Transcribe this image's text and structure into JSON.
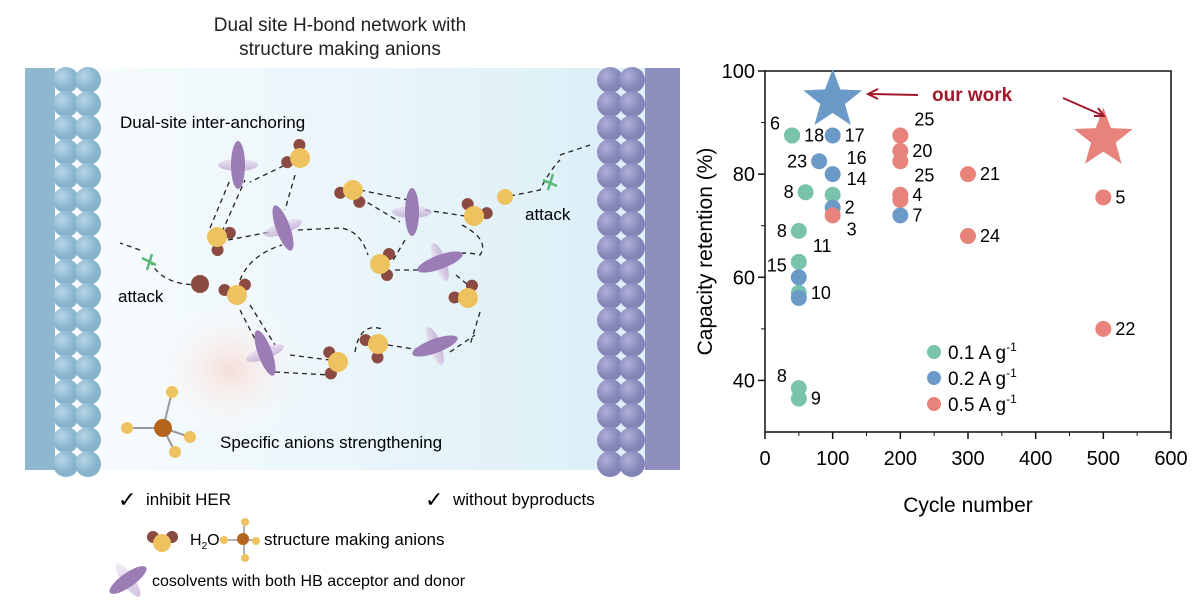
{
  "diagram": {
    "title_line1": "Dual site H-bond network with",
    "title_line2": "structure making anions",
    "label_anchoring": "Dual-site inter-anchoring",
    "label_attack_left": "attack",
    "label_attack_right": "attack",
    "label_anions": "Specific anions strengthening",
    "check_1": "inhibit HER",
    "check_2": "without byproducts",
    "legend_water": "H",
    "legend_water_sub": "2",
    "legend_water_end": "O",
    "legend_anion": "structure making anions",
    "legend_cosolvent": "cosolvents with both HB acceptor and donor",
    "colors": {
      "left_electrode": "#8fb8d0",
      "right_electrode": "#8f8fbd",
      "water_o": "#eec35f",
      "water_h": "#8b4a42",
      "cosolvent": "#8a6aa5",
      "attack_x": "#5cb87a"
    }
  },
  "chart_data": {
    "type": "scatter",
    "xlabel": "Cycle number",
    "ylabel": "Capacity retention (%)",
    "xlim": [
      0,
      600
    ],
    "ylim": [
      30,
      100
    ],
    "xticks": [
      0,
      100,
      200,
      300,
      400,
      500,
      600
    ],
    "yticks": [
      40,
      60,
      80,
      100
    ],
    "grid": false,
    "legend_placement": "bottom-center",
    "annotation": "our work",
    "annotation_color": "#a0182a",
    "series": [
      {
        "name": "0.1 A g",
        "sup": "-1",
        "color": "#79c3ad",
        "points": [
          {
            "x": 40,
            "y": 87.5,
            "label": "6",
            "side": "upleft"
          },
          {
            "x": 40,
            "y": 87.5,
            "label": "18",
            "side": "right"
          },
          {
            "x": 60,
            "y": 76.5,
            "label": "8",
            "side": "left"
          },
          {
            "x": 100,
            "y": 76,
            "label": "14",
            "side": "upright"
          },
          {
            "x": 50,
            "y": 69,
            "label": "8",
            "side": "left"
          },
          {
            "x": 50,
            "y": 63,
            "label": "11",
            "side": "upright"
          },
          {
            "x": 50,
            "y": 57,
            "label": "10",
            "side": "right"
          },
          {
            "x": 50,
            "y": 38.5,
            "label": "8",
            "side": "upleft"
          },
          {
            "x": 50,
            "y": 36.5,
            "label": "9",
            "side": "right"
          }
        ]
      },
      {
        "name": "0.2 A g",
        "sup": "-1",
        "color": "#6c9ac8",
        "points": [
          {
            "x": 100,
            "y": 87.5,
            "label": "17",
            "side": "right"
          },
          {
            "x": 80,
            "y": 82.5,
            "label": "23",
            "side": "left"
          },
          {
            "x": 100,
            "y": 80,
            "label": "16",
            "side": "upright"
          },
          {
            "x": 100,
            "y": 73.5,
            "label": "2",
            "side": "right"
          },
          {
            "x": 50,
            "y": 60,
            "label": "15",
            "side": "upleft"
          },
          {
            "x": 50,
            "y": 56,
            "label": "",
            "side": "right"
          },
          {
            "x": 200,
            "y": 72,
            "label": "7",
            "side": "right"
          }
        ],
        "star": {
          "x": 100,
          "y": 94
        }
      },
      {
        "name": "0.5 A g",
        "sup": "-1",
        "color": "#e8837c",
        "points": [
          {
            "x": 100,
            "y": 72,
            "label": "3",
            "side": "downright"
          },
          {
            "x": 200,
            "y": 87.5,
            "label": "25",
            "side": "upright"
          },
          {
            "x": 200,
            "y": 84.5,
            "label": "20",
            "side": "right"
          },
          {
            "x": 200,
            "y": 82.5,
            "label": "25",
            "side": "downright"
          },
          {
            "x": 200,
            "y": 76,
            "label": "4",
            "side": "right"
          },
          {
            "x": 200,
            "y": 75,
            "label": "",
            "side": "right"
          },
          {
            "x": 300,
            "y": 80,
            "label": "21",
            "side": "right"
          },
          {
            "x": 300,
            "y": 68,
            "label": "24",
            "side": "right"
          },
          {
            "x": 500,
            "y": 75.5,
            "label": "5",
            "side": "right"
          },
          {
            "x": 500,
            "y": 50,
            "label": "22",
            "side": "right"
          }
        ],
        "star": {
          "x": 500,
          "y": 86.5
        }
      }
    ]
  }
}
